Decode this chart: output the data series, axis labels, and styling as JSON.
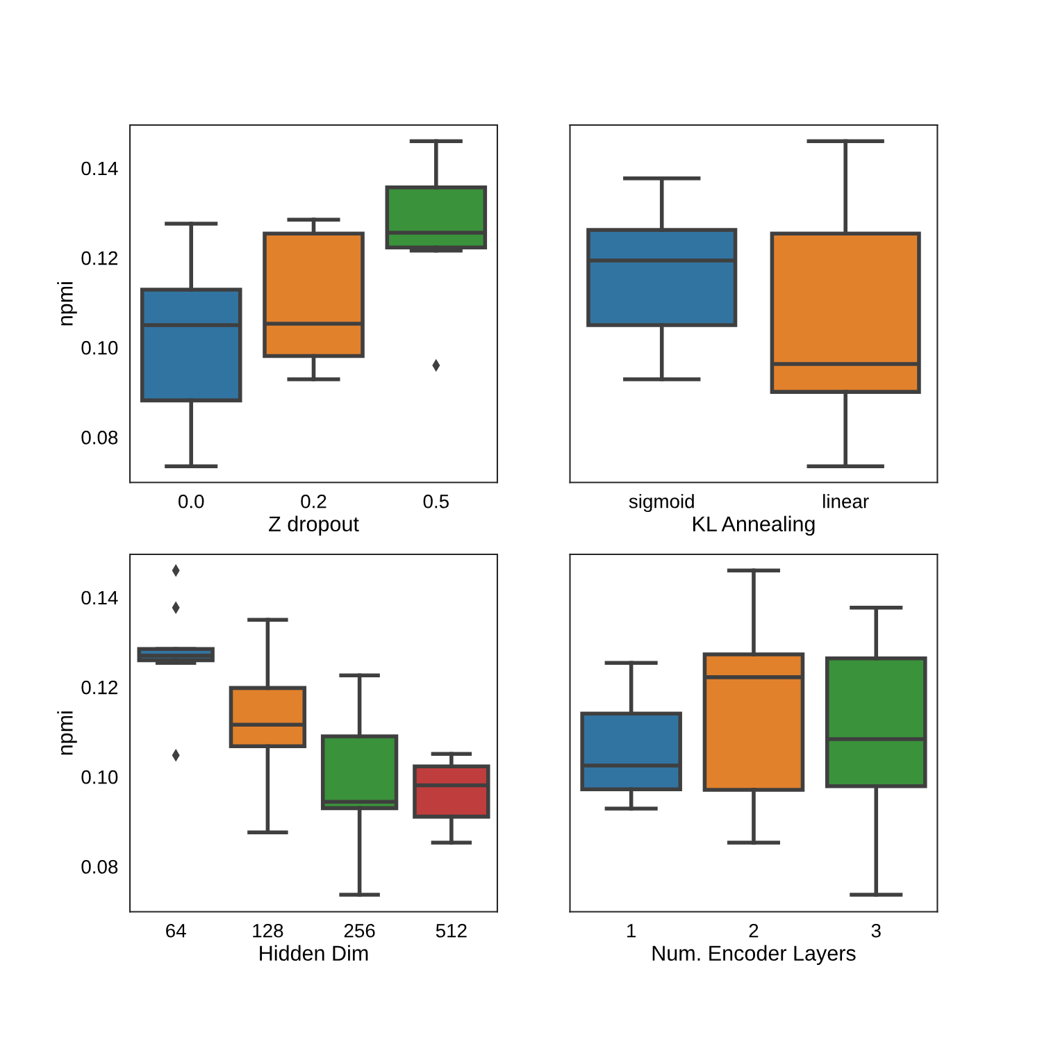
{
  "chart_data": [
    {
      "type": "box",
      "xlabel": "Z dropout",
      "ylabel": "npmi",
      "categories": [
        "0.0",
        "0.2",
        "0.5"
      ],
      "colors": [
        "#3274a1",
        "#e1812c",
        "#3a923a"
      ],
      "ylim": [
        0.0699,
        0.1496
      ],
      "yticks": [
        0.08,
        {
          "value": 0.1,
          "label": "0.10"
        },
        0.12,
        0.14
      ],
      "tick_labels": "xy",
      "marker": "diamond",
      "boxes": [
        {
          "low": 0.0735,
          "q1": 0.0882,
          "median": 0.105,
          "q3": 0.1129,
          "high": 0.1276
        },
        {
          "low": 0.0929,
          "q1": 0.0981,
          "median": 0.1053,
          "q3": 0.1254,
          "high": 0.1285
        },
        {
          "low": 0.1216,
          "q1": 0.1223,
          "median": 0.1256,
          "q3": 0.1357,
          "high": 0.146,
          "outliers": [
            0.096
          ]
        }
      ]
    },
    {
      "type": "box",
      "xlabel": "KL Annealing",
      "categories": [
        "sigmoid",
        "linear"
      ],
      "colors": [
        "#3274a1",
        "#e1812c"
      ],
      "ylim": [
        0.0699,
        0.1496
      ],
      "tick_labels": "x",
      "marker": "diamond",
      "boxes": [
        {
          "low": 0.0929,
          "q1": 0.105,
          "median": 0.1194,
          "q3": 0.1262,
          "high": 0.1377
        },
        {
          "low": 0.0735,
          "q1": 0.0901,
          "median": 0.0963,
          "q3": 0.1254,
          "high": 0.146
        }
      ]
    },
    {
      "type": "box",
      "xlabel": "Hidden Dim",
      "ylabel": "npmi",
      "categories": [
        "64",
        "128",
        "256",
        "512"
      ],
      "colors": [
        "#3274a1",
        "#e1812c",
        "#3a923a",
        "#c03d3e"
      ],
      "ylim": [
        0.0699,
        0.1496
      ],
      "yticks": [
        0.08,
        {
          "value": 0.1,
          "label": "0.10"
        },
        0.12,
        0.14
      ],
      "tick_labels": "xy",
      "marker": "diamond",
      "boxes": [
        {
          "low": 0.1254,
          "q1": 0.126,
          "median": 0.127,
          "q3": 0.1285,
          "high": 0.1285,
          "outliers": [
            0.146,
            0.1377,
            0.1048
          ]
        },
        {
          "low": 0.0876,
          "q1": 0.1068,
          "median": 0.1116,
          "q3": 0.1198,
          "high": 0.135
        },
        {
          "low": 0.0737,
          "q1": 0.093,
          "median": 0.0944,
          "q3": 0.109,
          "high": 0.1226
        },
        {
          "low": 0.0853,
          "q1": 0.0911,
          "median": 0.0981,
          "q3": 0.1023,
          "high": 0.1051
        }
      ]
    },
    {
      "type": "box",
      "xlabel": "Num. Encoder Layers",
      "categories": [
        "1",
        "2",
        "3"
      ],
      "colors": [
        "#3274a1",
        "#e1812c",
        "#3a923a"
      ],
      "ylim": [
        0.0699,
        0.1496
      ],
      "tick_labels": "x",
      "marker": "diamond",
      "boxes": [
        {
          "low": 0.0929,
          "q1": 0.0972,
          "median": 0.1025,
          "q3": 0.1141,
          "high": 0.1254
        },
        {
          "low": 0.0853,
          "q1": 0.0971,
          "median": 0.1222,
          "q3": 0.1273,
          "high": 0.146
        },
        {
          "low": 0.0737,
          "q1": 0.0979,
          "median": 0.1084,
          "q3": 0.1264,
          "high": 0.1377
        }
      ]
    }
  ]
}
